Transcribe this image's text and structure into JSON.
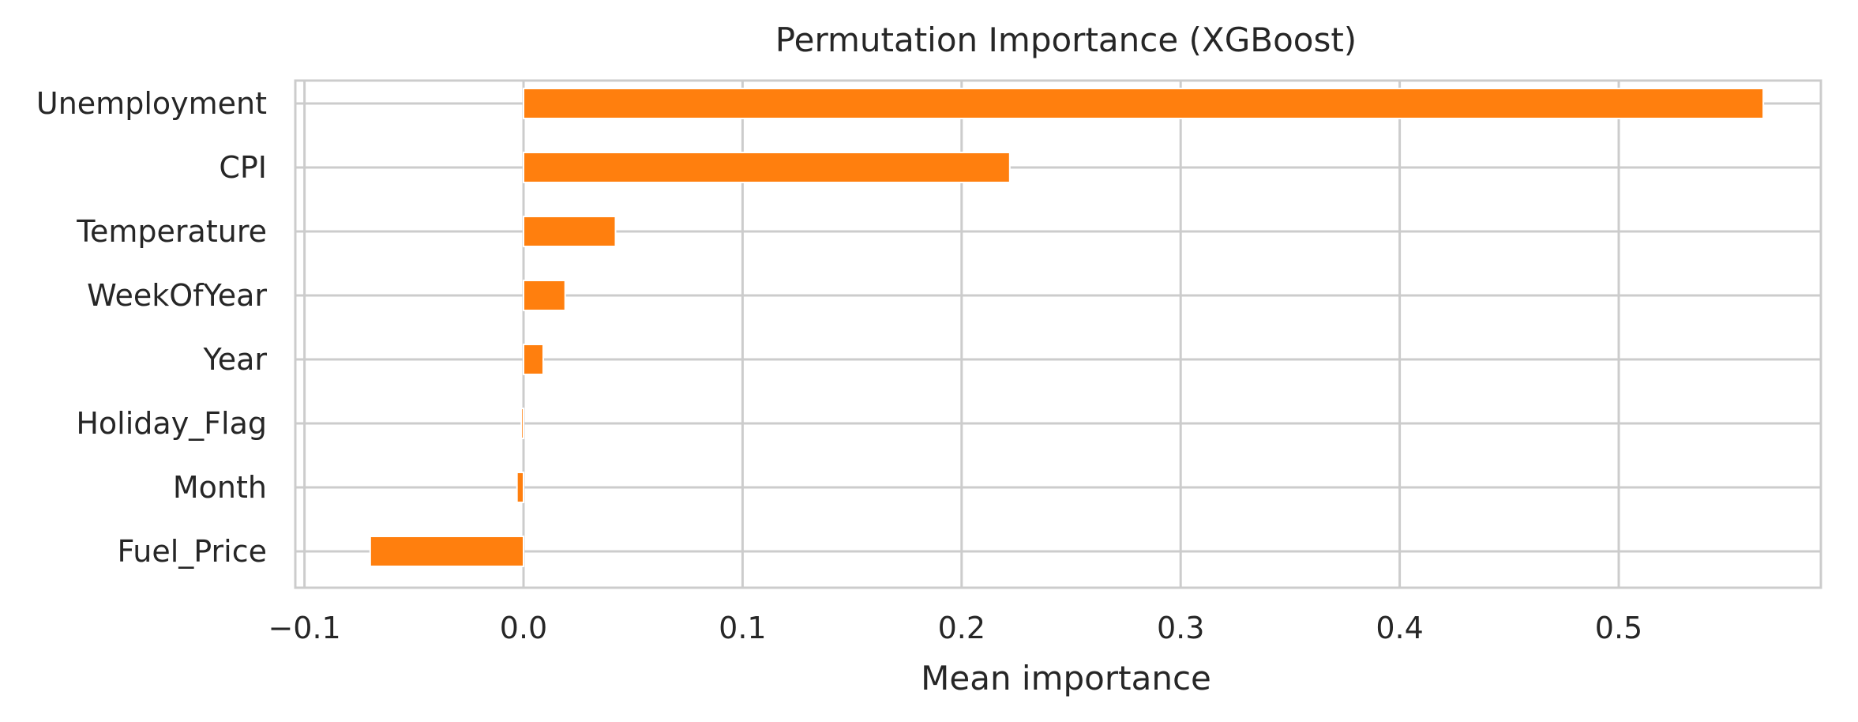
{
  "chart_data": {
    "type": "bar",
    "orientation": "horizontal",
    "title": "Permutation Importance (XGBoost)",
    "xlabel": "Mean importance",
    "ylabel": "",
    "xlim": [
      -0.1,
      0.59
    ],
    "xticks": [
      -0.1,
      0.0,
      0.1,
      0.2,
      0.3,
      0.4,
      0.5
    ],
    "xtick_labels": [
      "−0.1",
      "0.0",
      "0.1",
      "0.2",
      "0.3",
      "0.4",
      "0.5"
    ],
    "categories": [
      "Unemployment",
      "CPI",
      "Temperature",
      "WeekOfYear",
      "Year",
      "Holiday_Flag",
      "Month",
      "Fuel_Price"
    ],
    "values": [
      0.566,
      0.222,
      0.042,
      0.019,
      0.009,
      -0.001,
      -0.003,
      -0.07
    ],
    "bar_color": "#ff7f0e",
    "grid": true,
    "legend": "none"
  }
}
